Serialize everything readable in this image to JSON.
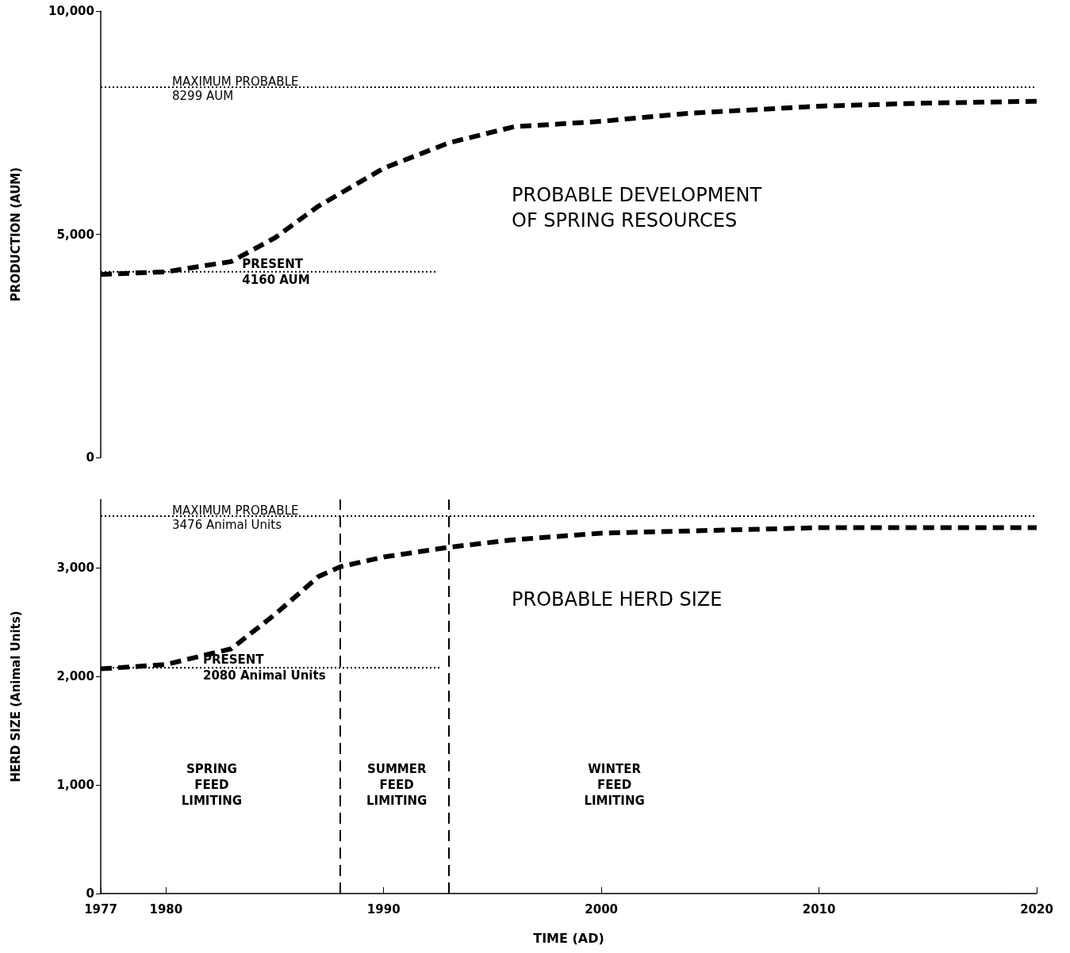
{
  "chart_data": [
    {
      "type": "line",
      "title": "PROBABLE DEVELOPMENT\nOF SPRING RESOURCES",
      "ylabel": "PRODUCTION (AUM)",
      "xlim": [
        1977,
        2020
      ],
      "ylim": [
        0,
        10000
      ],
      "yticks": [
        0,
        {
          "value": 5000,
          "label": "5,000"
        },
        {
          "value": 10000,
          "label": "10,000"
        }
      ],
      "tick_labels": "y",
      "grid": false,
      "marker": "none",
      "series": [
        {
          "type": "line",
          "color": "#000000",
          "line_style": "dashed",
          "x": [
            1977,
            1980,
            1983,
            1985,
            1987,
            1990,
            1993,
            1996,
            2000,
            2004,
            2010,
            2015,
            2020
          ],
          "values": [
            4100,
            4160,
            4390,
            4920,
            5630,
            6480,
            7050,
            7410,
            7530,
            7710,
            7870,
            7940,
            7980
          ]
        },
        {
          "type": "line",
          "color": "#000000",
          "line_style": "dotted",
          "x": [
            1977,
            1992.4
          ],
          "values": [
            4160,
            4160
          ]
        }
      ],
      "ref_lines": [
        {
          "axis": "y",
          "value": 8299,
          "label": "MAXIMUM PROBABLE\n8299 AUM",
          "line_style": "dotted",
          "color": "#000000"
        }
      ],
      "annotations": [
        {
          "text": "PRESENT\n4160 AUM",
          "x": 1983.5,
          "y": 4160
        }
      ]
    },
    {
      "type": "line",
      "title": "PROBABLE HERD SIZE",
      "xlabel": "TIME (AD)",
      "ylabel": "HERD SIZE (Animal Units)",
      "xlim": [
        1977,
        2020
      ],
      "xticks": [
        1977,
        1980,
        1990,
        2000,
        2010,
        2020
      ],
      "ylim": [
        0,
        3630
      ],
      "yticks": [
        0,
        {
          "value": 1000,
          "label": "1,000"
        },
        {
          "value": 2000,
          "label": "2,000"
        },
        {
          "value": 3000,
          "label": "3,000"
        }
      ],
      "grid": false,
      "marker": "none",
      "series": [
        {
          "type": "line",
          "color": "#000000",
          "line_style": "dashed",
          "x": [
            1977,
            1980,
            1983,
            1985,
            1987,
            1988,
            1990,
            1993,
            1996,
            2000,
            2010,
            2020
          ],
          "values": [
            2070,
            2110,
            2255,
            2570,
            2920,
            3010,
            3100,
            3190,
            3260,
            3320,
            3370,
            3370
          ]
        },
        {
          "type": "line",
          "color": "#000000",
          "line_style": "dotted",
          "x": [
            1977,
            1992.6
          ],
          "values": [
            2080,
            2080
          ]
        }
      ],
      "ref_lines": [
        {
          "axis": "y",
          "value": 3476,
          "label": "MAXIMUM PROBABLE\n3476 Animal Units",
          "line_style": "dotted",
          "color": "#000000"
        },
        {
          "axis": "x",
          "value": 1988,
          "line_style": "dashed",
          "color": "#000000"
        },
        {
          "axis": "x",
          "value": 1993,
          "line_style": "dashed",
          "color": "#000000"
        }
      ],
      "annotations": [
        {
          "text": "PRESENT\n2080 Animal Units",
          "x": 1981.7,
          "y": 2080
        },
        "SPRING\nFEED\nLIMITING",
        "SUMMER\nFEED\nLIMITING",
        "WINTER\nFEED\nLIMITING"
      ]
    }
  ]
}
